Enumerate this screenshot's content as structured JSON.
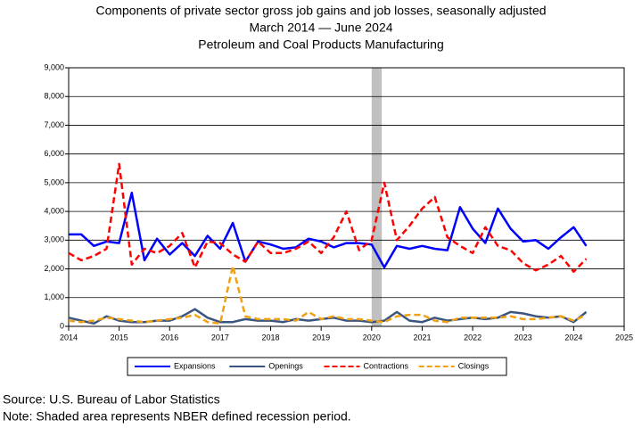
{
  "chart_data": {
    "type": "line",
    "title": "Components of private sector gross job gains and job losses, seasonally adjusted",
    "subtitle": "March 2014  — June 2024",
    "subtitle2": "Petroleum and Coal Products Manufacturing",
    "source": "Source: U.S. Bureau of Labor Statistics",
    "note": "Note: Shaded area represents NBER defined recession period.",
    "x": [
      2014.0,
      2014.25,
      2014.5,
      2014.75,
      2015.0,
      2015.25,
      2015.5,
      2015.75,
      2016.0,
      2016.25,
      2016.5,
      2016.75,
      2017.0,
      2017.25,
      2017.5,
      2017.75,
      2018.0,
      2018.25,
      2018.5,
      2018.75,
      2019.0,
      2019.25,
      2019.5,
      2019.75,
      2020.0,
      2020.25,
      2020.5,
      2020.75,
      2021.0,
      2021.25,
      2021.5,
      2021.75,
      2022.0,
      2022.25,
      2022.5,
      2022.75,
      2023.0,
      2023.25,
      2023.5,
      2023.75,
      2024.0,
      2024.25
    ],
    "series": [
      {
        "name": "Expansions",
        "color": "#0000ff",
        "width": 2.5,
        "style": "solid",
        "values": [
          3200,
          3200,
          2800,
          2950,
          2900,
          4650,
          2300,
          3050,
          2500,
          2900,
          2450,
          3150,
          2700,
          3600,
          2250,
          2950,
          2850,
          2700,
          2750,
          3050,
          2950,
          2750,
          2900,
          2900,
          2850,
          2050,
          2800,
          2700,
          2800,
          2700,
          2650,
          4150,
          3400,
          2900,
          4100,
          3400,
          2950,
          3000,
          2700,
          3100,
          3450,
          2800
        ]
      },
      {
        "name": "Openings",
        "color": "#3a5580",
        "width": 2.5,
        "style": "solid",
        "values": [
          300,
          200,
          100,
          350,
          200,
          150,
          150,
          200,
          200,
          350,
          600,
          300,
          150,
          150,
          250,
          200,
          200,
          150,
          250,
          200,
          250,
          300,
          200,
          200,
          150,
          200,
          500,
          200,
          150,
          300,
          200,
          250,
          300,
          250,
          300,
          500,
          450,
          350,
          300,
          350,
          150,
          500
        ]
      },
      {
        "name": "Contractions",
        "color": "#ff0000",
        "width": 2.5,
        "style": "dashed",
        "values": [
          2550,
          2300,
          2450,
          2700,
          5650,
          2150,
          2700,
          2550,
          2800,
          3250,
          2050,
          2950,
          2900,
          2500,
          2250,
          2950,
          2550,
          2550,
          2700,
          2950,
          2550,
          3100,
          4000,
          2650,
          3000,
          5000,
          3000,
          3500,
          4100,
          4500,
          3100,
          2800,
          2550,
          3450,
          2800,
          2650,
          2200,
          1950,
          2150,
          2450,
          1900,
          2350
        ]
      },
      {
        "name": "Closings",
        "color": "#f0a010",
        "width": 2.5,
        "style": "dashed",
        "values": [
          200,
          150,
          200,
          300,
          250,
          200,
          150,
          200,
          250,
          300,
          400,
          150,
          100,
          2100,
          350,
          250,
          250,
          250,
          200,
          500,
          250,
          350,
          250,
          250,
          200,
          150,
          350,
          400,
          400,
          200,
          150,
          300,
          300,
          300,
          300,
          350,
          250,
          250,
          300,
          350,
          200,
          400
        ]
      }
    ],
    "recession": [
      2020.0,
      2020.2
    ],
    "xlim": [
      2014,
      2025
    ],
    "xticks": [
      2014,
      2015,
      2016,
      2017,
      2018,
      2019,
      2020,
      2021,
      2022,
      2023,
      2024,
      2025
    ],
    "ylim": [
      0,
      9000
    ],
    "yticks": [
      0,
      {
        "value": 1000,
        "label": "1,000"
      },
      {
        "value": 2000,
        "label": "2,000"
      },
      {
        "value": 3000,
        "label": "3,000"
      },
      {
        "value": 4000,
        "label": "4,000"
      },
      {
        "value": 5000,
        "label": "5,000"
      },
      {
        "value": 6000,
        "label": "6,000"
      },
      {
        "value": 7000,
        "label": "7,000"
      },
      {
        "value": 8000,
        "label": "8,000"
      },
      {
        "value": 9000,
        "label": "9,000"
      }
    ],
    "grid": true,
    "legend": "bottom"
  }
}
